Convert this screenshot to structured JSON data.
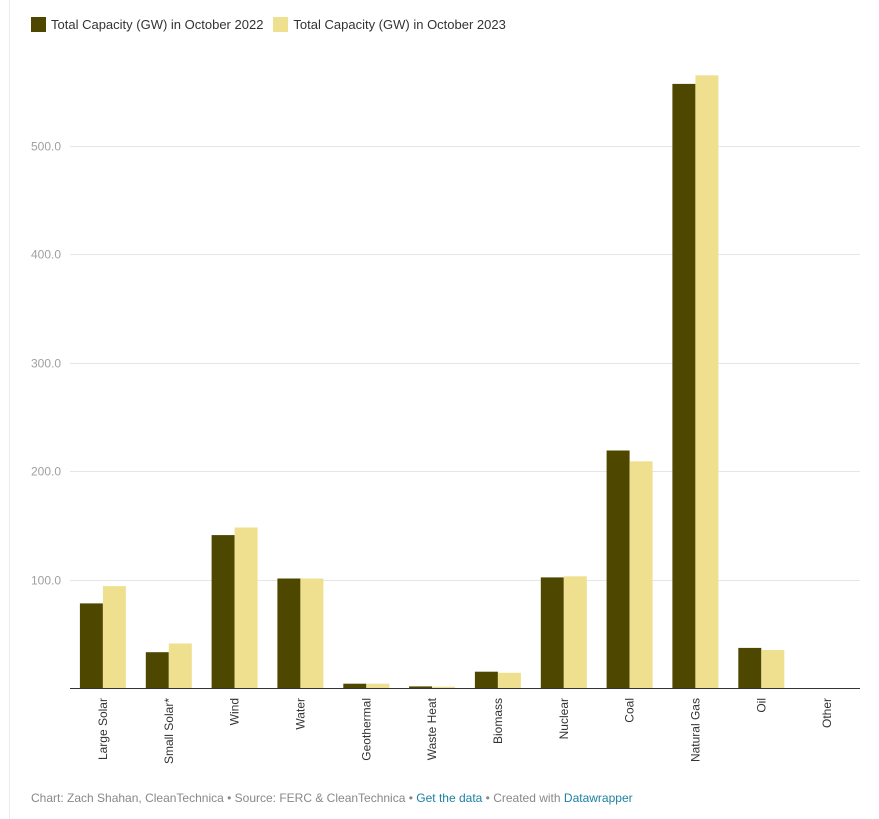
{
  "chart_data": {
    "type": "bar",
    "title": "",
    "xlabel": "",
    "ylabel": "",
    "ylim": [
      0,
      575
    ],
    "yticks": [
      "100.0",
      "200.0",
      "300.0",
      "400.0",
      "500.0"
    ],
    "categories": [
      "Large Solar",
      "Small Solar*",
      "Wind",
      "Water",
      "Geothermal",
      "Waste Heat",
      "Biomass",
      "Nuclear",
      "Coal",
      "Natural Gas",
      "Oil",
      "Other"
    ],
    "series": [
      {
        "name": "Total Capacity (GW) in October 2022",
        "color": "#4e4700",
        "values": [
          78,
          33,
          141,
          101,
          4,
          1.5,
          15,
          102,
          219,
          557,
          37,
          0
        ]
      },
      {
        "name": "Total Capacity (GW) in October 2023",
        "color": "#efe08f",
        "values": [
          94,
          41,
          148,
          101,
          4,
          1.2,
          14,
          103,
          209,
          565,
          35,
          0
        ]
      }
    ],
    "grid": true,
    "legend": "top-left"
  },
  "footer": {
    "chart_by": "Chart: Zach Shahan, CleanTechnica",
    "sep1": " • ",
    "source": "Source: FERC & CleanTechnica",
    "sep2": " • ",
    "get_data": "Get the data",
    "sep3": " • ",
    "created_with": "Created with ",
    "datawrapper": "Datawrapper"
  }
}
